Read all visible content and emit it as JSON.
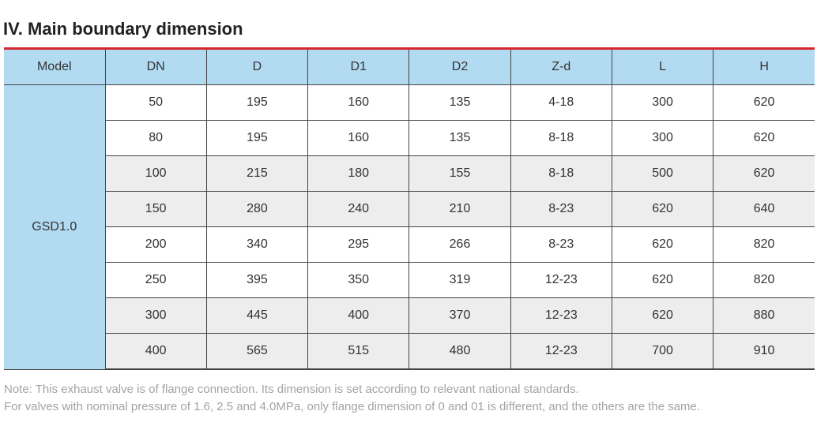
{
  "section": {
    "title": "IV. Main boundary dimension"
  },
  "table": {
    "headers": [
      "Model",
      "DN",
      "D",
      "D1",
      "D2",
      "Z-d",
      "L",
      "H"
    ],
    "model": "GSD1.0",
    "rows": [
      {
        "cells": [
          "50",
          "195",
          "160",
          "135",
          "4-18",
          "300",
          "620"
        ],
        "shaded": false
      },
      {
        "cells": [
          "80",
          "195",
          "160",
          "135",
          "8-18",
          "300",
          "620"
        ],
        "shaded": false
      },
      {
        "cells": [
          "100",
          "215",
          "180",
          "155",
          "8-18",
          "500",
          "620"
        ],
        "shaded": true
      },
      {
        "cells": [
          "150",
          "280",
          "240",
          "210",
          "8-23",
          "620",
          "640"
        ],
        "shaded": true
      },
      {
        "cells": [
          "200",
          "340",
          "295",
          "266",
          "8-23",
          "620",
          "820"
        ],
        "shaded": false
      },
      {
        "cells": [
          "250",
          "395",
          "350",
          "319",
          "12-23",
          "620",
          "820"
        ],
        "shaded": false
      },
      {
        "cells": [
          "300",
          "445",
          "400",
          "370",
          "12-23",
          "620",
          "880"
        ],
        "shaded": true
      },
      {
        "cells": [
          "400",
          "565",
          "515",
          "480",
          "12-23",
          "700",
          "910"
        ],
        "shaded": true
      }
    ]
  },
  "notes": {
    "line1": "Note: This exhaust valve is of flange connection. Its dimension is set according to relevant national standards.",
    "line2": "For valves with nominal pressure of 1.6, 2.5 and 4.0MPa, only flange dimension of 0 and 01 is different, and the others are the same."
  },
  "colors": {
    "header_bg": "#b2daf0",
    "accent_rule": "#d7262f",
    "shaded_row": "#ededed",
    "note_text": "#a3a3a3"
  }
}
